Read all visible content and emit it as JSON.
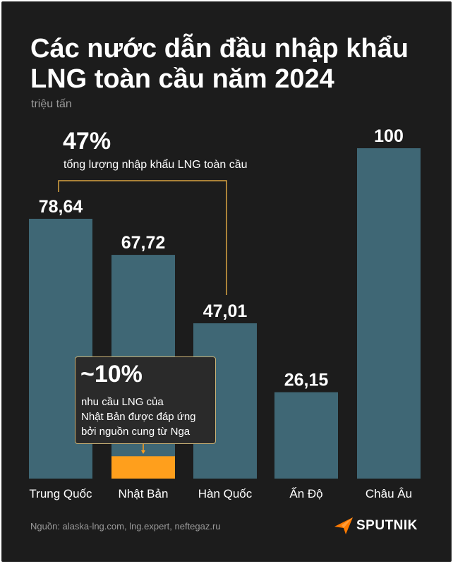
{
  "title": "Các nước dẫn đầu nhập khẩu LNG toàn cầu năm 2024",
  "unit": "triệu tấn",
  "chart_data": {
    "type": "bar",
    "title": "Các nước dẫn đầu nhập khẩu LNG toàn cầu năm 2024",
    "ylabel": "triệu tấn",
    "categories": [
      "Trung Quốc",
      "Nhật Bản",
      "Hàn Quốc",
      "Ấn Độ",
      "Châu Âu"
    ],
    "values": [
      78.64,
      67.72,
      47.01,
      26.15,
      100
    ],
    "value_labels": [
      "78,64",
      "67,72",
      "47,01",
      "26,15",
      "100"
    ],
    "ylim": [
      0,
      100
    ],
    "grid": false,
    "highlight": {
      "category": "Nhật Bản",
      "share": 0.1
    }
  },
  "annotation_share": {
    "percent": "47%",
    "text": "tổng lượng nhập khẩu LNG toàn cầu"
  },
  "annotation_japan": {
    "percent": "~10%",
    "lines": [
      "nhu cầu LNG của",
      "Nhật Bản được đáp ứng",
      "bởi nguồn cung từ Nga"
    ]
  },
  "source": "Nguồn: alaska-lng.com, lng.expert, neftegaz.ru",
  "logo": {
    "text": "SPUTNIK",
    "icon": "sputnik-arrow-icon"
  },
  "colors": {
    "background": "#1c1c1c",
    "bar": "#3f6775",
    "highlight": "#ff9f1c",
    "bracket": "#d9a441"
  }
}
